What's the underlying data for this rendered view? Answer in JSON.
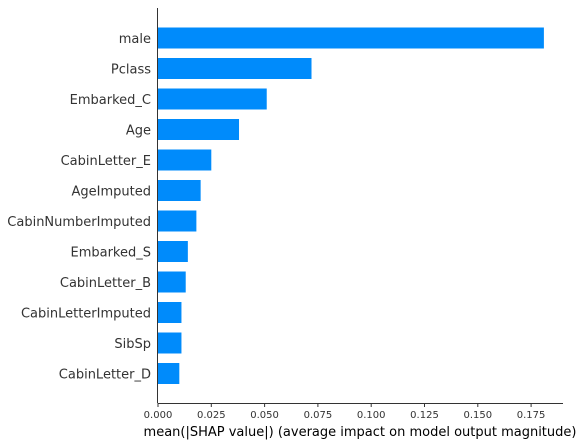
{
  "chart_data": {
    "type": "bar",
    "orientation": "horizontal",
    "title": "",
    "xlabel": "mean(|SHAP value|) (average impact on model output magnitude)",
    "ylabel": "",
    "categories": [
      "male",
      "Pclass",
      "Embarked_C",
      "Age",
      "CabinLetter_E",
      "AgeImputed",
      "CabinNumberImputed",
      "Embarked_S",
      "CabinLetter_B",
      "CabinLetterImputed",
      "SibSp",
      "CabinLetter_D"
    ],
    "values": [
      0.181,
      0.072,
      0.051,
      0.038,
      0.025,
      0.02,
      0.018,
      0.014,
      0.013,
      0.011,
      0.011,
      0.01
    ],
    "xlim": [
      0,
      0.19
    ],
    "xticks": [
      0.0,
      0.025,
      0.05,
      0.075,
      0.1,
      0.125,
      0.15,
      0.175
    ],
    "xtick_labels": [
      "0.000",
      "0.025",
      "0.050",
      "0.075",
      "0.100",
      "0.125",
      "0.150",
      "0.175"
    ],
    "bar_color": "#008bfb",
    "grid": false,
    "legend": "none"
  }
}
